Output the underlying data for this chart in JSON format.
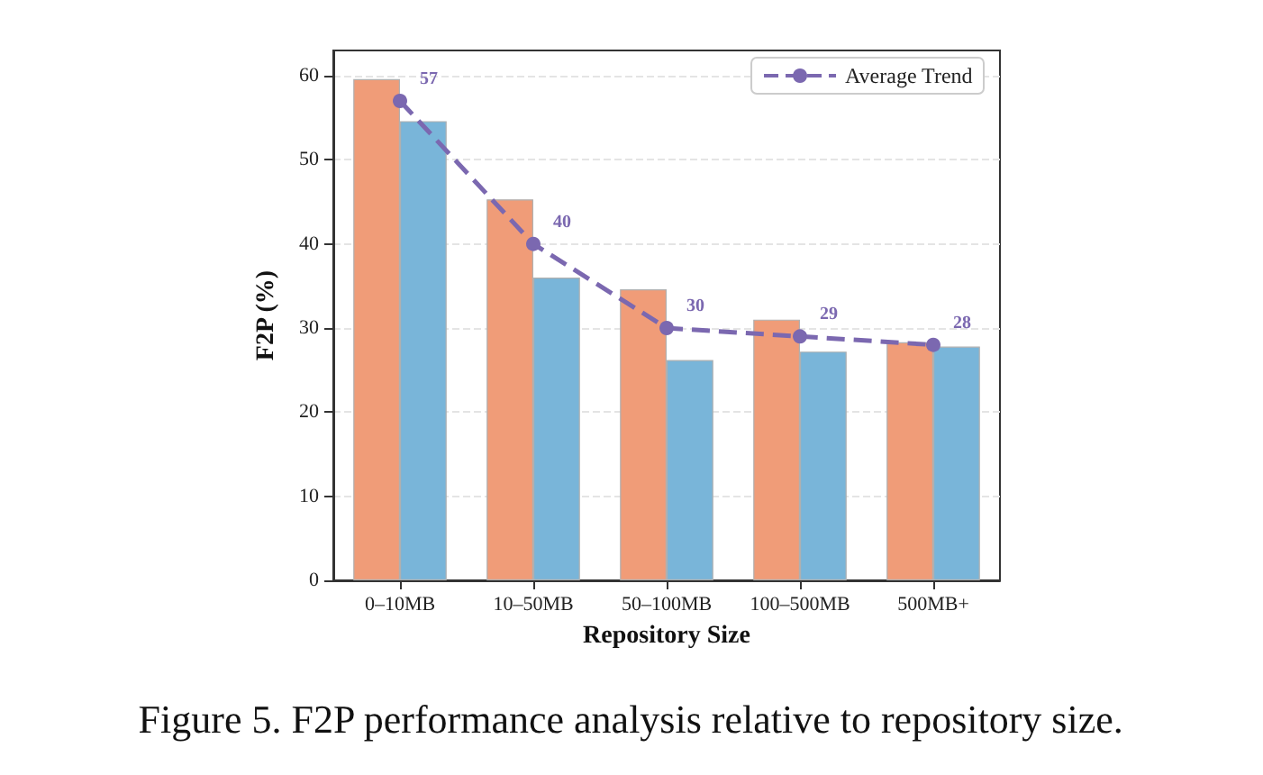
{
  "chart_data": {
    "type": "bar",
    "xlabel": "Repository Size",
    "ylabel": "F2P (%)",
    "categories": [
      "0–10MB",
      "10–50MB",
      "50–100MB",
      "100–500MB",
      "500MB+"
    ],
    "series": [
      {
        "color": "#f09c78",
        "values": [
          59.6,
          45.3,
          34.6,
          31.0,
          28.3
        ]
      },
      {
        "color": "#79b5d9",
        "values": [
          54.6,
          36.0,
          26.2,
          27.2,
          27.8
        ]
      },
      {
        "name": "Average Trend",
        "type": "line",
        "color": "#7b68b0",
        "values": [
          57,
          40,
          30,
          29,
          28
        ],
        "value_labels": [
          "57",
          "40",
          "30",
          "29",
          "28"
        ],
        "marker": "circle",
        "line_style": "dashed"
      }
    ],
    "ylim": [
      0,
      63
    ],
    "yticks": [
      0,
      10,
      20,
      30,
      40,
      50,
      60
    ],
    "grid": "y",
    "legend": "top right",
    "annotations": [
      "Figure 5. F2P performance analysis relative to repository size."
    ]
  }
}
